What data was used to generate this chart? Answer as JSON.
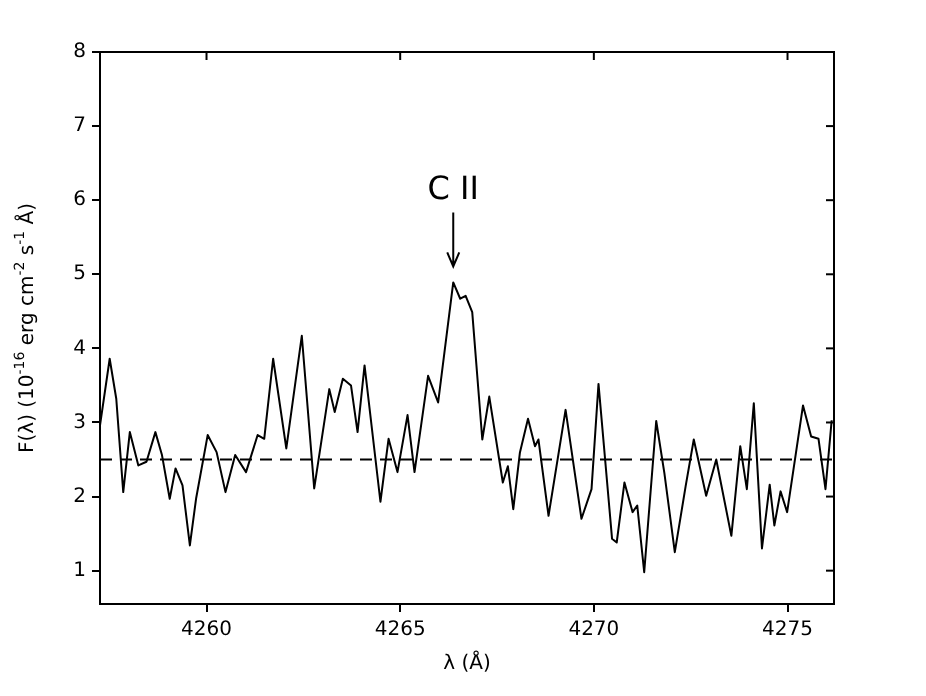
{
  "chart_data": {
    "type": "line",
    "xlabel": "λ (Å)",
    "ylabel": "F(λ) (10$^{-16}$ erg cm$^{-2}$ s$^{-1}$ Å)",
    "xlim": [
      4257.25,
      4276.2
    ],
    "xticks": [
      4260,
      4265,
      4270,
      4275
    ],
    "ylim": [
      0.55,
      8
    ],
    "yticks": [
      1,
      2,
      3,
      4,
      5,
      6,
      7,
      8
    ],
    "grid": false,
    "marker": "none",
    "line_style": "solid",
    "series": [
      {
        "color": "#000000",
        "x": [
          4257.25,
          4257.5,
          4257.67,
          4257.85,
          4258.02,
          4258.24,
          4258.45,
          4258.68,
          4258.85,
          4259.05,
          4259.2,
          4259.38,
          4259.57,
          4259.73,
          4260.03,
          4260.26,
          4260.49,
          4260.74,
          4261.02,
          4261.32,
          4261.49,
          4261.72,
          4262.06,
          4262.46,
          4262.78,
          4263.17,
          4263.31,
          4263.52,
          4263.73,
          4263.9,
          4264.08,
          4264.49,
          4264.7,
          4264.93,
          4265.19,
          4265.37,
          4265.72,
          4265.98,
          4266.37,
          4266.55,
          4266.69,
          4266.86,
          4267.12,
          4267.3,
          4267.65,
          4267.78,
          4267.92,
          4268.09,
          4268.3,
          4268.48,
          4268.57,
          4268.83,
          4269.27,
          4269.68,
          4269.94,
          4270.12,
          4270.47,
          4270.59,
          4270.79,
          4271.0,
          4271.12,
          4271.3,
          4271.61,
          4271.82,
          4272.09,
          4272.37,
          4272.58,
          4272.9,
          4273.16,
          4273.55,
          4273.78,
          4273.95,
          4274.13,
          4274.34,
          4274.54,
          4274.66,
          4274.82,
          4274.99,
          4275.4,
          4275.61,
          4275.8,
          4275.98,
          4276.14
        ],
        "values": [
          2.96,
          3.86,
          3.32,
          2.06,
          2.87,
          2.42,
          2.47,
          2.87,
          2.56,
          1.97,
          2.38,
          2.15,
          1.34,
          1.97,
          2.83,
          2.6,
          2.06,
          2.56,
          2.33,
          2.83,
          2.78,
          3.86,
          2.65,
          4.17,
          2.11,
          3.45,
          3.14,
          3.59,
          3.5,
          2.87,
          3.77,
          1.93,
          2.78,
          2.33,
          3.1,
          2.33,
          3.63,
          3.27,
          4.89,
          4.67,
          4.71,
          4.49,
          2.77,
          3.35,
          2.19,
          2.41,
          1.83,
          2.59,
          3.05,
          2.68,
          2.77,
          1.74,
          3.17,
          1.7,
          2.1,
          3.52,
          1.43,
          1.38,
          2.19,
          1.79,
          1.88,
          0.98,
          3.02,
          2.32,
          1.25,
          2.14,
          2.77,
          2.01,
          2.5,
          1.47,
          2.68,
          2.1,
          3.26,
          1.3,
          2.16,
          1.61,
          2.07,
          1.79,
          3.23,
          2.81,
          2.78,
          2.1,
          3.03
        ]
      }
    ],
    "ref_lines": [
      {
        "axis": "y",
        "value": 2.5,
        "color": "#000000",
        "line_style": "dashed"
      }
    ],
    "annotations": [
      {
        "text": "C II",
        "x": 4266.37,
        "y": 4.89
      }
    ]
  }
}
